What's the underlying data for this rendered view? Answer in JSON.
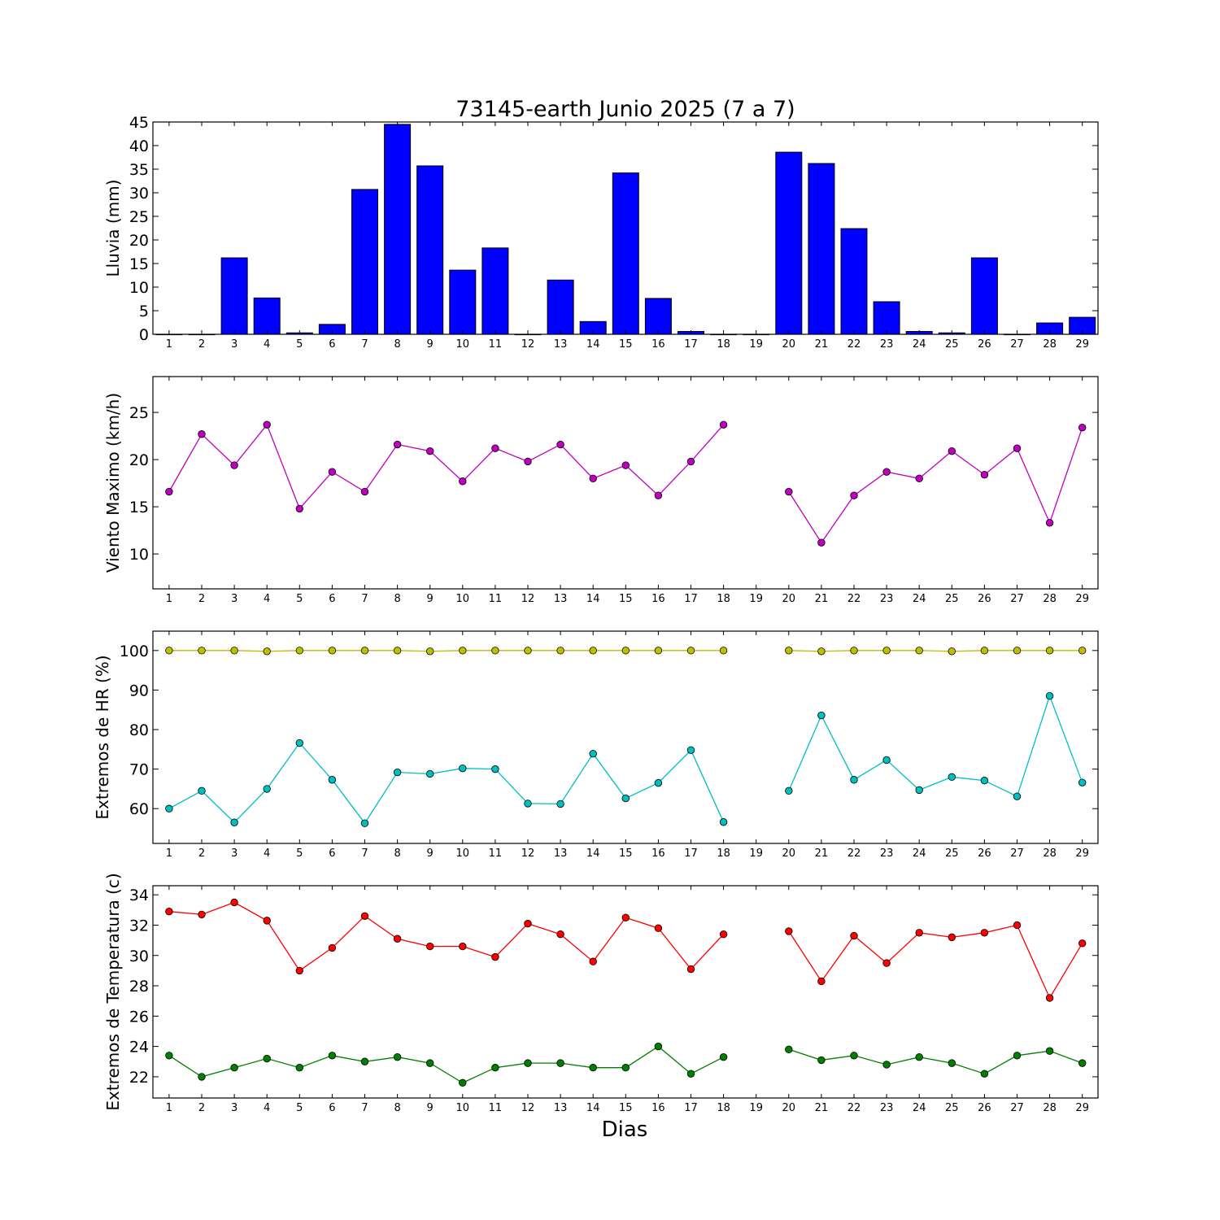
{
  "chart_data": [
    {
      "type": "bar",
      "title": "73145-earth Junio 2025  (7 a 7)",
      "xlabel": "",
      "ylabel": "Lluvia (mm)",
      "categories": [
        "1",
        "2",
        "3",
        "4",
        "5",
        "6",
        "7",
        "8",
        "9",
        "10",
        "11",
        "12",
        "13",
        "14",
        "15",
        "16",
        "17",
        "18",
        "19",
        "20",
        "21",
        "22",
        "23",
        "24",
        "25",
        "26",
        "27",
        "28",
        "29"
      ],
      "values": [
        0,
        0,
        16.2,
        7.7,
        0.3,
        2.1,
        30.7,
        44.5,
        35.7,
        13.6,
        18.3,
        0,
        11.5,
        2.7,
        34.2,
        7.6,
        0.6,
        0,
        0,
        38.6,
        36.2,
        22.4,
        6.9,
        0.6,
        0.3,
        16.2,
        0,
        2.4,
        3.6
      ],
      "ylim": [
        0,
        45
      ],
      "yticks": [
        0,
        5,
        10,
        15,
        20,
        25,
        30,
        35,
        40,
        45
      ],
      "color": "#0000ff",
      "grid": false
    },
    {
      "type": "line",
      "title": "",
      "xlabel": "",
      "ylabel": "Viento Maximo (km/h)",
      "categories": [
        "1",
        "2",
        "3",
        "4",
        "5",
        "6",
        "7",
        "8",
        "9",
        "10",
        "11",
        "12",
        "13",
        "14",
        "15",
        "16",
        "17",
        "18",
        "19",
        "20",
        "21",
        "22",
        "23",
        "24",
        "25",
        "26",
        "27",
        "28",
        "29"
      ],
      "series": [
        {
          "color": "#bf00bf",
          "values": [
            16.6,
            22.7,
            19.4,
            23.7,
            14.8,
            18.7,
            16.6,
            21.6,
            20.9,
            17.7,
            21.2,
            19.8,
            21.6,
            18.0,
            19.4,
            16.2,
            19.8,
            23.7,
            null,
            16.6,
            11.2,
            16.2,
            18.7,
            18.0,
            20.9,
            18.4,
            21.2,
            13.3,
            23.4
          ]
        }
      ],
      "ylim": [
        6.3,
        28.8
      ],
      "yticks": [
        10,
        15,
        20,
        25
      ],
      "grid": false
    },
    {
      "type": "line",
      "title": "",
      "xlabel": "",
      "ylabel": "Extremos de HR (%)",
      "categories": [
        "1",
        "2",
        "3",
        "4",
        "5",
        "6",
        "7",
        "8",
        "9",
        "10",
        "11",
        "12",
        "13",
        "14",
        "15",
        "16",
        "17",
        "18",
        "19",
        "20",
        "21",
        "22",
        "23",
        "24",
        "25",
        "26",
        "27",
        "28",
        "29"
      ],
      "series": [
        {
          "color": "#bfbf00",
          "values": [
            100,
            100,
            100,
            99.8,
            100,
            100,
            100,
            100,
            99.8,
            100,
            100,
            100,
            100,
            100,
            100,
            100,
            100,
            100,
            null,
            100,
            99.8,
            100,
            100,
            100,
            99.8,
            100,
            100,
            100,
            100
          ]
        },
        {
          "color": "#00bfbf",
          "values": [
            60,
            64.5,
            56.5,
            65,
            76.6,
            67.3,
            56.3,
            69.2,
            68.8,
            70.2,
            70,
            61.3,
            61.2,
            73.9,
            62.6,
            66.5,
            74.8,
            56.6,
            null,
            64.5,
            83.6,
            67.3,
            72.3,
            64.7,
            68,
            67.1,
            63.1,
            88.5,
            66.6
          ]
        }
      ],
      "ylim": [
        51.2,
        104.9
      ],
      "yticks": [
        60,
        70,
        80,
        90,
        100
      ],
      "grid": false
    },
    {
      "type": "line",
      "title": "",
      "xlabel": "Dias",
      "ylabel": "Extremos de Temperatura (c)",
      "categories": [
        "1",
        "2",
        "3",
        "4",
        "5",
        "6",
        "7",
        "8",
        "9",
        "10",
        "11",
        "12",
        "13",
        "14",
        "15",
        "16",
        "17",
        "18",
        "19",
        "20",
        "21",
        "22",
        "23",
        "24",
        "25",
        "26",
        "27",
        "28",
        "29"
      ],
      "series": [
        {
          "color": "#ff0000",
          "values": [
            32.9,
            32.7,
            33.5,
            32.3,
            29.0,
            30.5,
            32.6,
            31.1,
            30.6,
            30.6,
            29.9,
            32.1,
            31.4,
            29.6,
            32.5,
            31.8,
            29.1,
            31.4,
            null,
            31.6,
            28.3,
            31.3,
            29.5,
            31.5,
            31.2,
            31.5,
            32.0,
            27.2,
            30.8
          ]
        },
        {
          "color": "#007f00",
          "values": [
            23.4,
            22.0,
            22.6,
            23.2,
            22.6,
            23.4,
            23.0,
            23.3,
            22.9,
            21.6,
            22.6,
            22.9,
            22.9,
            22.6,
            22.6,
            24.0,
            22.2,
            23.3,
            null,
            23.8,
            23.1,
            23.4,
            22.8,
            23.3,
            22.9,
            22.2,
            23.4,
            23.7,
            22.9
          ]
        }
      ],
      "ylim": [
        20.6,
        34.6
      ],
      "yticks": [
        22,
        24,
        26,
        28,
        30,
        32,
        34
      ],
      "grid": false
    }
  ]
}
